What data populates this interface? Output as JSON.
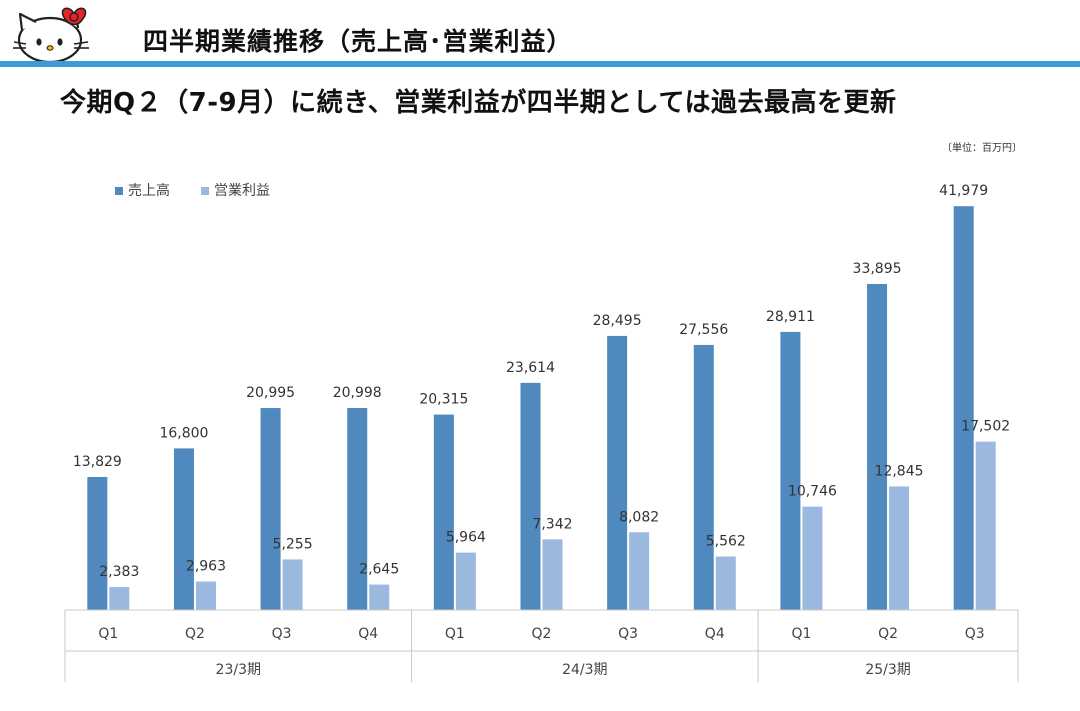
{
  "header": {
    "title": "四半期業績推移（売上高･営業利益）",
    "logo_icon": "hello-kitty-logo-icon"
  },
  "headline": "今期Q２（7-9月）に続き、営業利益が四半期としては過去最高を更新",
  "unit_note": "〔単位：百万円〕",
  "colors": {
    "accent_rule": "#3b9bd6",
    "sales": "#4f89bd",
    "operating_income": "#9bb9df"
  },
  "chart_data": {
    "type": "bar",
    "categories": [
      "Q1",
      "Q2",
      "Q3",
      "Q4",
      "Q1",
      "Q2",
      "Q3",
      "Q4",
      "Q1",
      "Q2",
      "Q3"
    ],
    "groups": [
      {
        "label": "23/3期",
        "count": 4
      },
      {
        "label": "24/3期",
        "count": 4
      },
      {
        "label": "25/3期",
        "count": 3
      }
    ],
    "series": [
      {
        "name": "売上高",
        "color": "#4f89bd",
        "values": [
          13829,
          16800,
          20995,
          20998,
          20315,
          23614,
          28495,
          27556,
          28911,
          33895,
          41979
        ],
        "labels": [
          "13,829",
          "16,800",
          "20,995",
          "20,998",
          "20,315",
          "23,614",
          "28,495",
          "27,556",
          "28,911",
          "33,895",
          "41,979"
        ]
      },
      {
        "name": "営業利益",
        "color": "#9bb9df",
        "values": [
          2383,
          2963,
          5255,
          2645,
          5964,
          7342,
          8082,
          5562,
          10746,
          12845,
          17502
        ],
        "labels": [
          "2,383",
          "2,963",
          "5,255",
          "2,645",
          "5,964",
          "7,342",
          "8,082",
          "5,562",
          "10,746",
          "12,845",
          "17,502"
        ]
      }
    ],
    "ylim": [
      0,
      42000
    ],
    "legend_position": "top-left",
    "grid": false
  }
}
